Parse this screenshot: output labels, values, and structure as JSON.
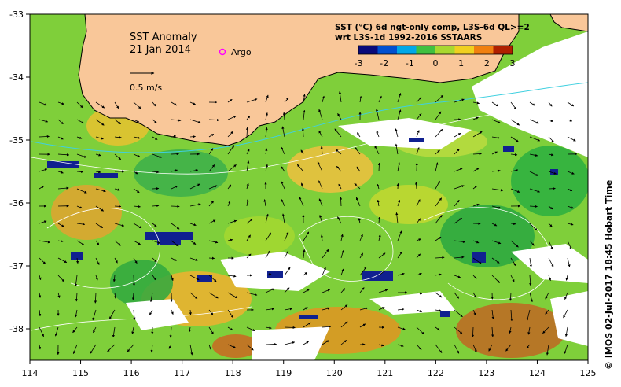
{
  "title": "SST Anomaly",
  "date": "21 Jan 2014",
  "argo_label": "Argo",
  "velocity_scale_label": "0.5 m/s",
  "colorbar": {
    "title_line1": "SST (°C) 6d ngt-only comp, L3S-6d QL>=2",
    "title_line2": "wrt L3S-1d 1992-2016 SSTAARS",
    "ticks": [
      "-3",
      "-2",
      "-1",
      "0",
      "1",
      "2",
      "3"
    ],
    "colors": [
      "#0a0a7a",
      "#0050d0",
      "#00a8e8",
      "#40c040",
      "#a8d830",
      "#f0d020",
      "#f08010",
      "#b02000"
    ]
  },
  "credit": "© IMOS 02-Jul-2017 18:45 Hobart Time",
  "axes": {
    "x_ticks": [
      "114",
      "115",
      "116",
      "117",
      "118",
      "119",
      "120",
      "121",
      "122",
      "123",
      "124",
      "125"
    ],
    "y_ticks": [
      "-33",
      "-34",
      "-35",
      "-36",
      "-37",
      "-38"
    ]
  },
  "colors": {
    "land": "#f9c799",
    "missing": "#ffffff",
    "background_anomaly": "#7fcf3a",
    "coastline": "#000000",
    "contour": "#ffffff",
    "shelf_contour": "#40d0e0",
    "argo": "#ff00ff"
  }
}
